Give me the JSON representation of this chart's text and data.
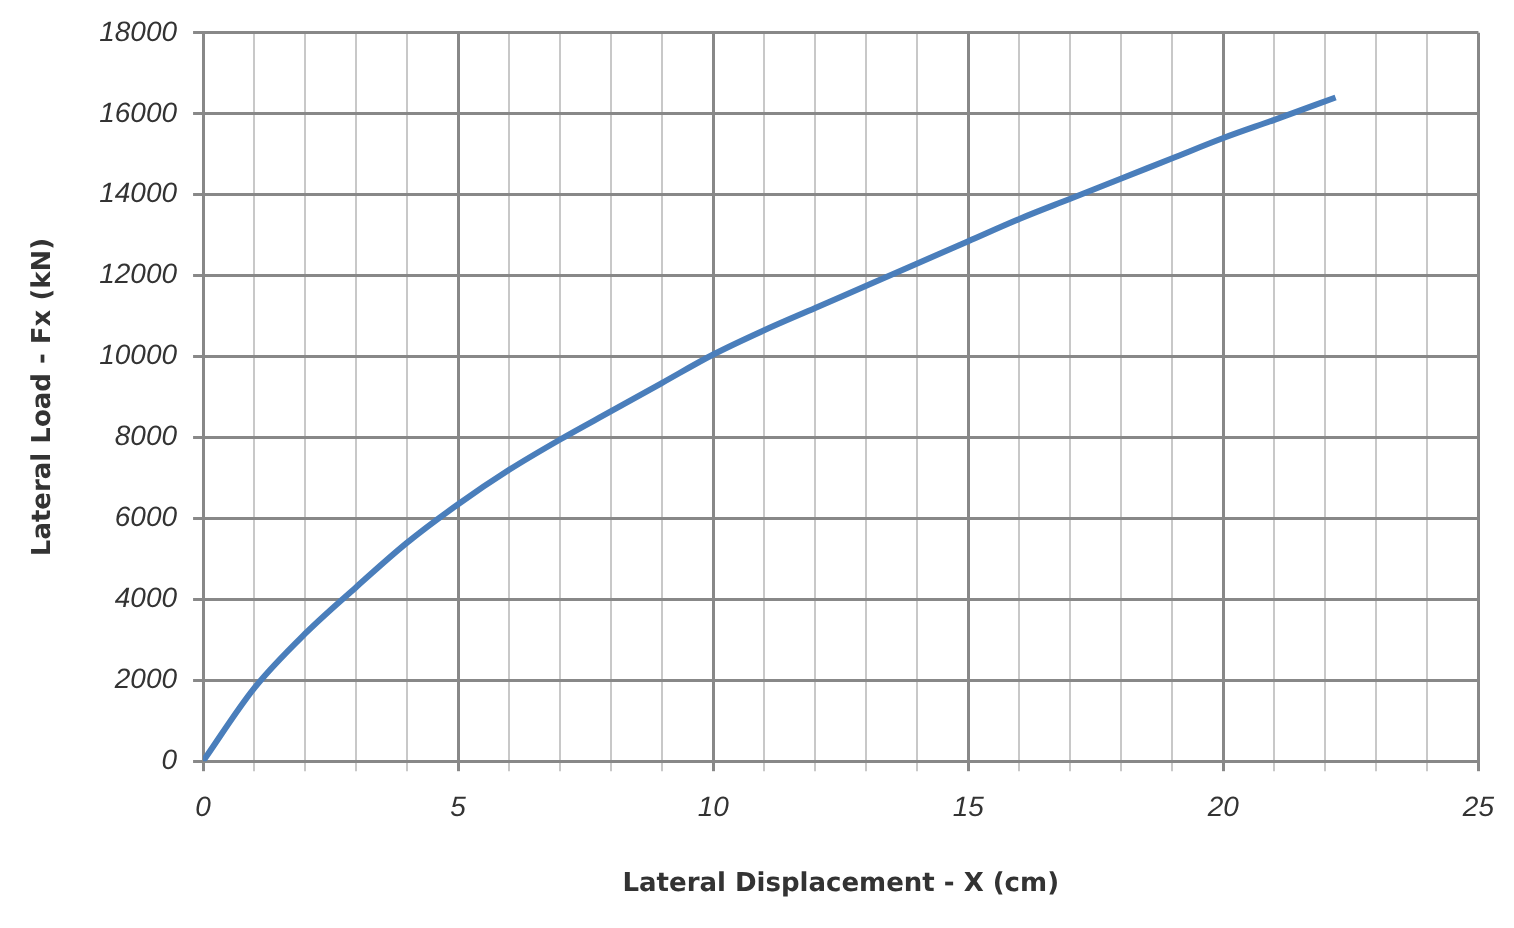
{
  "chart_data": {
    "type": "line",
    "xlabel": "Lateral Displacement - X (cm)",
    "ylabel": "Lateral Load - Fx (kN)",
    "series": [
      {
        "color": "#4a7ebb",
        "x": [
          0,
          1,
          2,
          3,
          4,
          5,
          6,
          7,
          8,
          9,
          10,
          11,
          12,
          13,
          14,
          15,
          16,
          17,
          18,
          19,
          20,
          21,
          22.2
        ],
        "values": [
          0,
          1800,
          3150,
          4300,
          5400,
          6350,
          7200,
          7950,
          8650,
          9350,
          10050,
          10650,
          11200,
          11750,
          12300,
          12850,
          13400,
          13900,
          14400,
          14900,
          15400,
          15850,
          16400
        ]
      }
    ],
    "xlim": [
      0,
      25
    ],
    "xticks": [
      0,
      5,
      10,
      15,
      20,
      25
    ],
    "ylim": [
      0,
      18000
    ],
    "yticks": [
      0,
      2000,
      4000,
      6000,
      8000,
      10000,
      12000,
      14000,
      16000,
      18000
    ],
    "grid": true,
    "legend": false,
    "marker": "none",
    "line_style": "solid"
  }
}
